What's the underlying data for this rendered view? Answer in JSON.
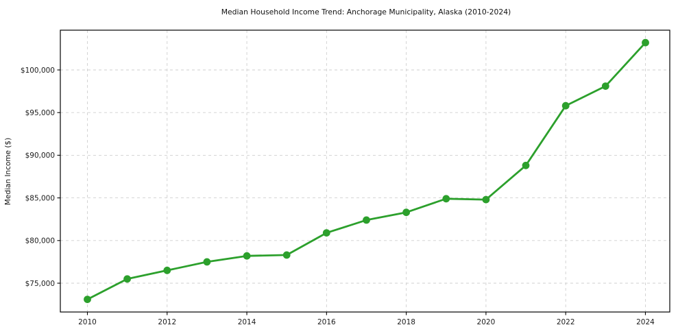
{
  "chart_data": {
    "type": "line",
    "title": "Median Household Income Trend: Anchorage Municipality, Alaska (2010-2024)",
    "xlabel": "",
    "ylabel": "Median Income ($)",
    "x": [
      2010,
      2011,
      2012,
      2013,
      2014,
      2015,
      2016,
      2017,
      2018,
      2019,
      2020,
      2021,
      2022,
      2023,
      2024
    ],
    "series": [
      {
        "name": "Median Household Income",
        "values": [
          73100,
          75500,
          76500,
          77500,
          78200,
          78300,
          80900,
          82400,
          83300,
          84900,
          84800,
          88800,
          95800,
          98100,
          103200
        ]
      }
    ],
    "x_tick_labels": [
      "2010",
      "2012",
      "2014",
      "2016",
      "2018",
      "2020",
      "2022",
      "2024"
    ],
    "x_tick_values": [
      2010,
      2012,
      2014,
      2016,
      2018,
      2020,
      2022,
      2024
    ],
    "y_tick_labels": [
      "$75,000",
      "$80,000",
      "$85,000",
      "$90,000",
      "$95,000",
      "$100,000"
    ],
    "y_tick_values": [
      75000,
      80000,
      85000,
      90000,
      95000,
      100000
    ],
    "ylim": [
      71600,
      104700
    ],
    "xlim": [
      2009.32,
      2024.61
    ],
    "grid": "dashed-both",
    "legend": "none",
    "line_color": "#2ca02c",
    "marker_color": "#2ca02c",
    "grid_color": "#cfcfcf",
    "spine_color": "#000000",
    "background_color": "#ffffff"
  }
}
